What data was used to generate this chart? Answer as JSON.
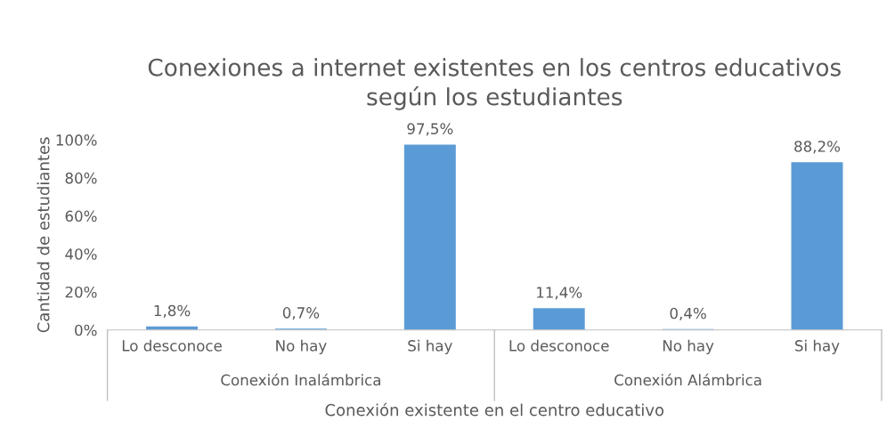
{
  "chart_data": {
    "type": "bar",
    "title": "Conexiones a internet existentes en los centros educativos\nsegún los estudiantes",
    "xlabel": "Conexión existente en el centro educativo",
    "ylabel": "Cantidad de estudiantes",
    "categories": [
      "Lo desconoce",
      "No hay",
      "Si hay",
      "Lo desconoce",
      "No hay",
      "Si hay"
    ],
    "values": [
      1.8,
      0.7,
      97.5,
      11.4,
      0.4,
      88.2
    ],
    "value_labels": [
      "1,8%",
      "0,7%",
      "97,5%",
      "11,4%",
      "0,4%",
      "88,2%"
    ],
    "color": "#5b9bd5",
    "ylim": [
      0,
      100
    ],
    "yticks": [
      {
        "value": 0,
        "label": "0%"
      },
      {
        "value": 20,
        "label": "20%"
      },
      {
        "value": 40,
        "label": "40%"
      },
      {
        "value": 60,
        "label": "60%"
      },
      {
        "value": 80,
        "label": "80%"
      },
      {
        "value": 100,
        "label": "100%"
      }
    ],
    "annotations": [
      "Conexión Inalámbrica",
      "Conexión Alámbrica"
    ],
    "grid": false,
    "legend": false
  }
}
